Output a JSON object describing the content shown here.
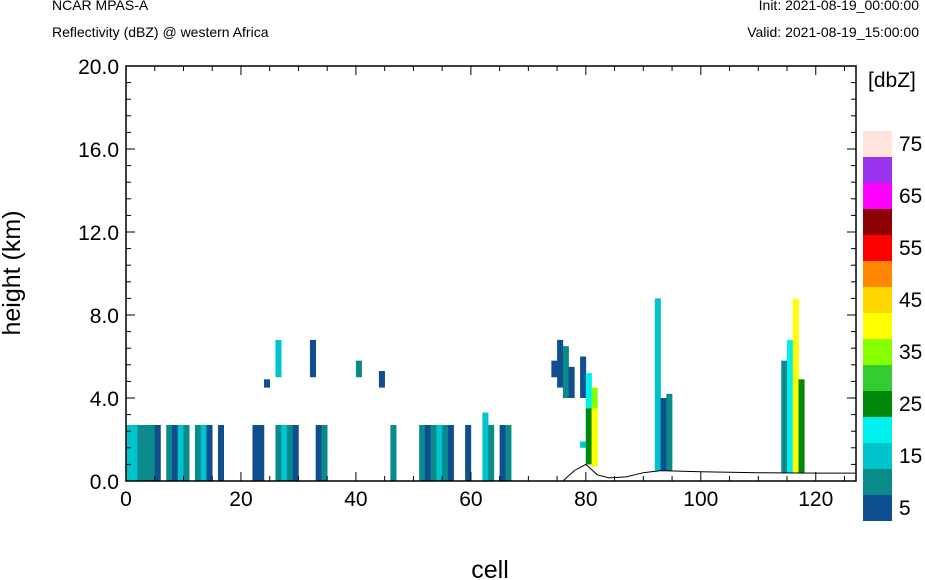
{
  "header": {
    "title": "NCAR MPAS-A",
    "subtitle": "Reflectivity (dBZ) @ western Africa",
    "init": "Init: 2021-08-19_00:00:00",
    "valid": "Valid: 2021-08-19_15:00:00"
  },
  "chart_data": {
    "type": "heatmap",
    "xlabel": "cell",
    "ylabel": "height (km)",
    "xlim": [
      0,
      127
    ],
    "ylim": [
      0,
      20
    ],
    "x_ticks": [
      0,
      20,
      40,
      60,
      80,
      100,
      120
    ],
    "y_ticks": [
      0,
      4,
      8,
      12,
      16,
      20
    ],
    "x_tick_labels": [
      "0",
      "20",
      "40",
      "60",
      "80",
      "100",
      "120"
    ],
    "y_tick_labels": [
      "0.0",
      "4.0",
      "8.0",
      "12.0",
      "16.0",
      "20.0"
    ],
    "colorbar": {
      "title": "[dbZ]",
      "labels": [
        "5",
        "15",
        "25",
        "35",
        "45",
        "55",
        "65",
        "75"
      ],
      "levels": [
        5,
        10,
        15,
        20,
        25,
        30,
        35,
        40,
        45,
        50,
        55,
        60,
        65,
        70,
        75
      ],
      "colors": [
        "#0f4f8f",
        "#0a8a8a",
        "#00c4cc",
        "#00f0f0",
        "#00880a",
        "#33cc33",
        "#88ff00",
        "#ffff00",
        "#ffd700",
        "#ff8800",
        "#ff0000",
        "#8b0000",
        "#ff00ff",
        "#9933ee",
        "#ffe4dc"
      ]
    },
    "cells": [
      {
        "x": [
          0,
          1
        ],
        "y": [
          0,
          2.7
        ],
        "dbz": 15
      },
      {
        "x": [
          1,
          2
        ],
        "y": [
          0,
          2.7
        ],
        "dbz": 15
      },
      {
        "x": [
          2,
          3
        ],
        "y": [
          0,
          2.7
        ],
        "dbz": 10
      },
      {
        "x": [
          3,
          4
        ],
        "y": [
          0,
          2.7
        ],
        "dbz": 10
      },
      {
        "x": [
          4,
          5
        ],
        "y": [
          0,
          2.7
        ],
        "dbz": 10
      },
      {
        "x": [
          5,
          6
        ],
        "y": [
          0,
          2.7
        ],
        "dbz": 5
      },
      {
        "x": [
          7,
          8
        ],
        "y": [
          0,
          2.7
        ],
        "dbz": 10
      },
      {
        "x": [
          8,
          9
        ],
        "y": [
          0,
          2.7
        ],
        "dbz": 5
      },
      {
        "x": [
          9,
          10
        ],
        "y": [
          0,
          2.7
        ],
        "dbz": 15
      },
      {
        "x": [
          10,
          11
        ],
        "y": [
          0,
          2.7
        ],
        "dbz": 10
      },
      {
        "x": [
          12,
          13
        ],
        "y": [
          0,
          2.7
        ],
        "dbz": 10
      },
      {
        "x": [
          13,
          14
        ],
        "y": [
          0,
          2.7
        ],
        "dbz": 15
      },
      {
        "x": [
          14,
          15
        ],
        "y": [
          0,
          2.7
        ],
        "dbz": 5
      },
      {
        "x": [
          16,
          17
        ],
        "y": [
          0,
          2.7
        ],
        "dbz": 5
      },
      {
        "x": [
          22,
          23
        ],
        "y": [
          0,
          2.7
        ],
        "dbz": 5
      },
      {
        "x": [
          23,
          24
        ],
        "y": [
          0,
          2.7
        ],
        "dbz": 5
      },
      {
        "x": [
          26,
          27
        ],
        "y": [
          0,
          2.7
        ],
        "dbz": 10
      },
      {
        "x": [
          27,
          28
        ],
        "y": [
          0,
          2.7
        ],
        "dbz": 15
      },
      {
        "x": [
          28,
          29
        ],
        "y": [
          0,
          2.7
        ],
        "dbz": 10
      },
      {
        "x": [
          29,
          30
        ],
        "y": [
          0,
          2.7
        ],
        "dbz": 5
      },
      {
        "x": [
          33,
          34
        ],
        "y": [
          0,
          2.7
        ],
        "dbz": 5
      },
      {
        "x": [
          34,
          35
        ],
        "y": [
          0,
          2.7
        ],
        "dbz": 10
      },
      {
        "x": [
          46,
          47
        ],
        "y": [
          0,
          2.7
        ],
        "dbz": 10
      },
      {
        "x": [
          51,
          52
        ],
        "y": [
          0,
          2.7
        ],
        "dbz": 10
      },
      {
        "x": [
          52,
          53
        ],
        "y": [
          0,
          2.7
        ],
        "dbz": 5
      },
      {
        "x": [
          53,
          54
        ],
        "y": [
          0,
          2.7
        ],
        "dbz": 10
      },
      {
        "x": [
          54,
          55
        ],
        "y": [
          0,
          2.7
        ],
        "dbz": 15
      },
      {
        "x": [
          55,
          56
        ],
        "y": [
          0,
          2.7
        ],
        "dbz": 10
      },
      {
        "x": [
          56,
          57
        ],
        "y": [
          0,
          2.7
        ],
        "dbz": 5
      },
      {
        "x": [
          59,
          60
        ],
        "y": [
          0,
          2.7
        ],
        "dbz": 5
      },
      {
        "x": [
          62,
          63
        ],
        "y": [
          0,
          3.3
        ],
        "dbz": 15
      },
      {
        "x": [
          63,
          64
        ],
        "y": [
          0,
          2.7
        ],
        "dbz": 10
      },
      {
        "x": [
          65,
          66
        ],
        "y": [
          0,
          2.7
        ],
        "dbz": 5
      },
      {
        "x": [
          66,
          67
        ],
        "y": [
          0,
          2.7
        ],
        "dbz": 10
      },
      {
        "x": [
          26,
          27
        ],
        "y": [
          5,
          6.8
        ],
        "dbz": 15
      },
      {
        "x": [
          32,
          33
        ],
        "y": [
          5,
          6.8
        ],
        "dbz": 5
      },
      {
        "x": [
          40,
          41
        ],
        "y": [
          5,
          5.8
        ],
        "dbz": 10
      },
      {
        "x": [
          24,
          25
        ],
        "y": [
          4.5,
          4.9
        ],
        "dbz": 5
      },
      {
        "x": [
          44,
          45
        ],
        "y": [
          4.5,
          5.3
        ],
        "dbz": 5
      },
      {
        "x": [
          74,
          75
        ],
        "y": [
          5.0,
          5.8
        ],
        "dbz": 5
      },
      {
        "x": [
          75,
          76
        ],
        "y": [
          4.5,
          6.8
        ],
        "dbz": 5
      },
      {
        "x": [
          76,
          77
        ],
        "y": [
          4.0,
          6.5
        ],
        "dbz": 10
      },
      {
        "x": [
          77,
          78
        ],
        "y": [
          4.0,
          5.5
        ],
        "dbz": 5
      },
      {
        "x": [
          79,
          80
        ],
        "y": [
          4.0,
          6.0
        ],
        "dbz": 5
      },
      {
        "x": [
          79,
          80
        ],
        "y": [
          1.6,
          1.9
        ],
        "dbz": 15
      },
      {
        "x": [
          80,
          81
        ],
        "y": [
          0.8,
          5.2
        ],
        "dbz": 20
      },
      {
        "x": [
          80,
          81
        ],
        "y": [
          0.8,
          3.5
        ],
        "dbz": 25
      },
      {
        "x": [
          81,
          82
        ],
        "y": [
          0.7,
          4.5
        ],
        "dbz": 35
      },
      {
        "x": [
          81,
          82
        ],
        "y": [
          0.7,
          3.5
        ],
        "dbz": 40
      },
      {
        "x": [
          92,
          93
        ],
        "y": [
          0.5,
          8.8
        ],
        "dbz": 15
      },
      {
        "x": [
          93,
          94
        ],
        "y": [
          0.5,
          4.0
        ],
        "dbz": 5
      },
      {
        "x": [
          94,
          95
        ],
        "y": [
          0.5,
          4.2
        ],
        "dbz": 10
      },
      {
        "x": [
          114,
          115
        ],
        "y": [
          0.4,
          5.8
        ],
        "dbz": 10
      },
      {
        "x": [
          115,
          116
        ],
        "y": [
          0.4,
          6.8
        ],
        "dbz": 20
      },
      {
        "x": [
          116,
          117
        ],
        "y": [
          0.4,
          8.8
        ],
        "dbz": 40
      },
      {
        "x": [
          117,
          118
        ],
        "y": [
          0.4,
          4.9
        ],
        "dbz": 25
      }
    ]
  }
}
